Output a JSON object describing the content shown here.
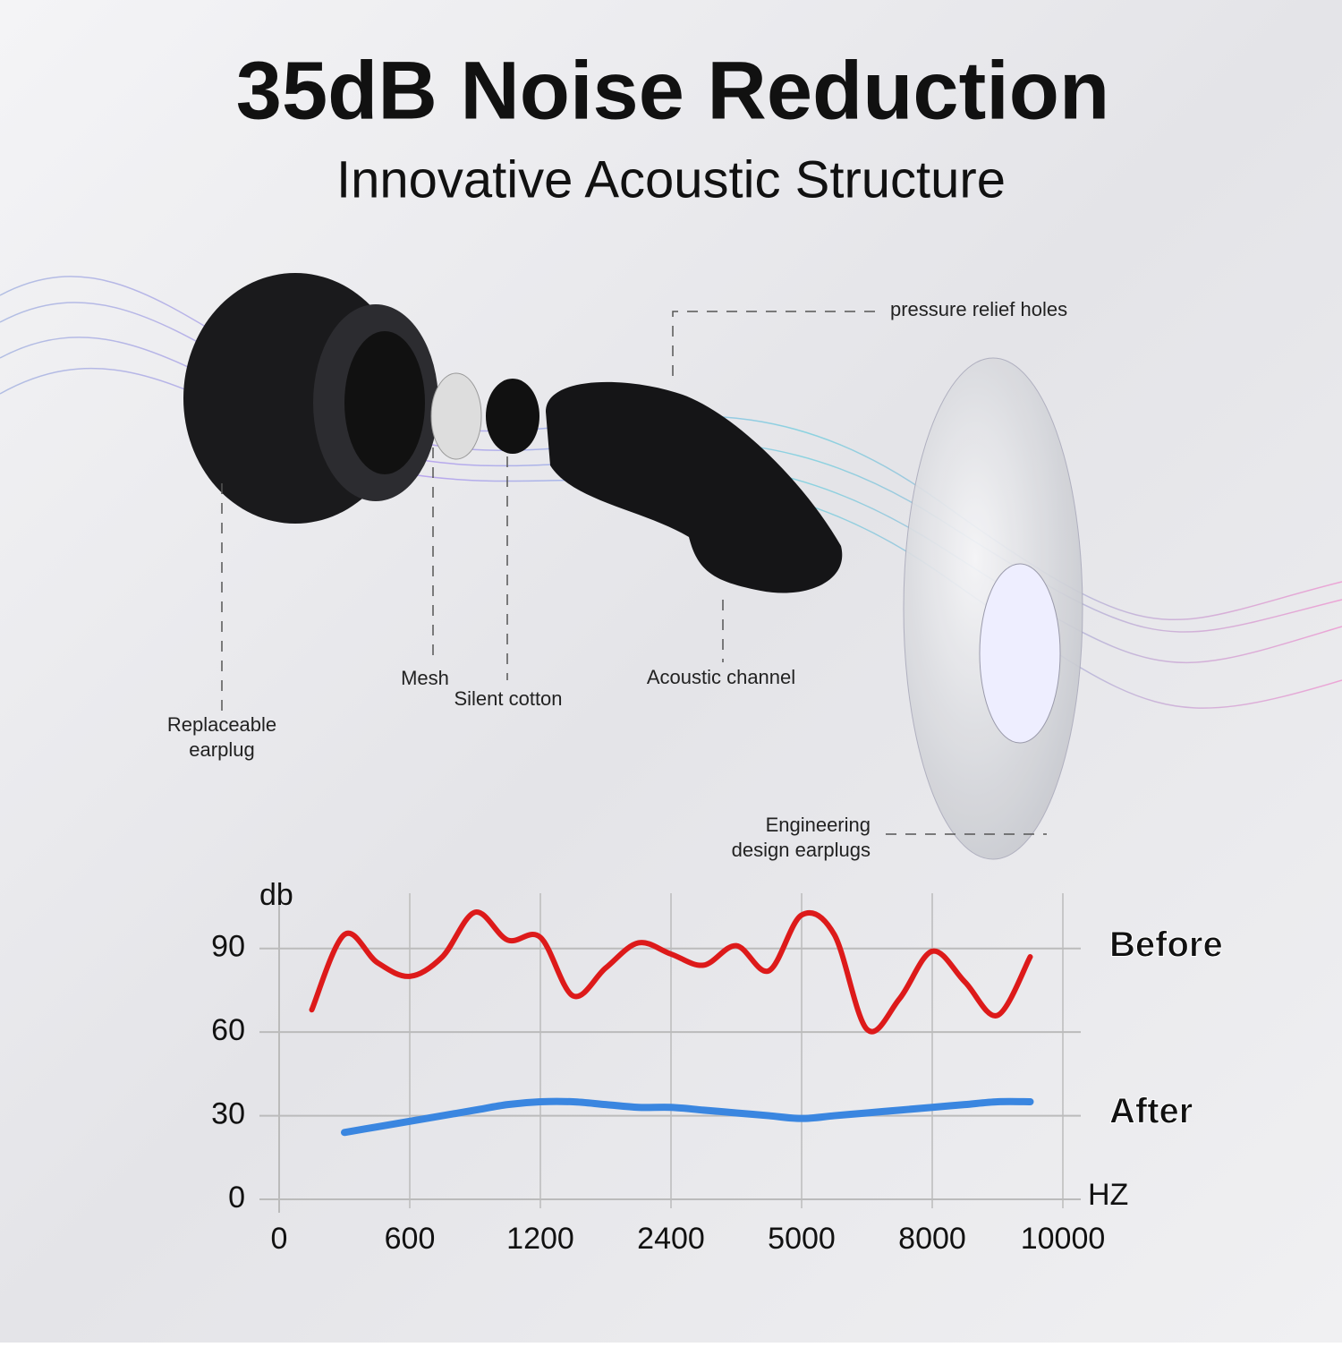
{
  "header": {
    "title": "35dB Noise Reduction",
    "subtitle": "Innovative Acoustic Structure"
  },
  "parts": {
    "pressure_relief_holes": "pressure relief holes",
    "mesh": "Mesh",
    "silent_cotton": "Silent cotton",
    "acoustic_channel": "Acoustic channel",
    "replaceable_earplug": [
      "Replaceable",
      "earplug"
    ],
    "engineering_design": [
      "Engineering",
      "design earplugs"
    ]
  },
  "chart_data": {
    "type": "line",
    "ylabel": "db",
    "xlabel": "HZ",
    "categories": [
      "0",
      null,
      null,
      null,
      "600",
      null,
      null,
      null,
      "1200",
      null,
      null,
      null,
      "2400",
      null,
      null,
      null,
      "5000",
      null,
      null,
      null,
      "8000",
      null,
      null,
      null,
      "10000"
    ],
    "series": [
      {
        "name": "Before",
        "color": "#dd1a1a",
        "values": [
          null,
          68,
          95,
          85,
          80,
          87,
          103,
          93,
          94,
          73,
          83,
          92,
          88,
          84,
          91,
          82,
          102,
          95,
          61,
          72,
          89,
          78,
          66,
          87,
          null
        ]
      },
      {
        "name": "After",
        "color": "#3a86e0",
        "values": [
          null,
          null,
          24,
          26,
          28,
          30,
          32,
          34,
          35,
          35,
          34,
          33,
          33,
          32,
          31,
          30,
          29,
          30,
          31,
          32,
          33,
          34,
          35,
          35,
          null
        ]
      }
    ],
    "ylim": [
      0,
      105
    ],
    "yticks": [
      0,
      30,
      60,
      90
    ],
    "grid": true
  }
}
